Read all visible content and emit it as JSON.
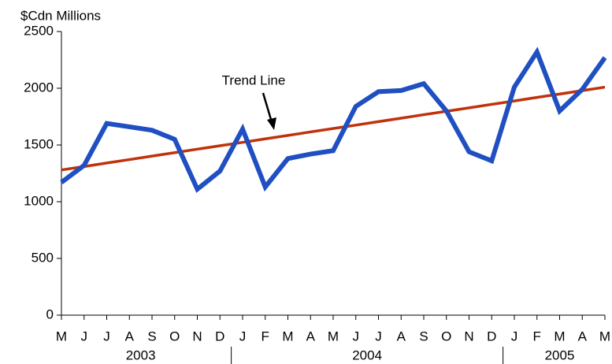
{
  "chart_data": {
    "type": "line",
    "y_label": "$Cdn Millions",
    "annotation": "Trend Line",
    "categories": [
      "M",
      "J",
      "J",
      "A",
      "S",
      "O",
      "N",
      "D",
      "J",
      "F",
      "M",
      "A",
      "M",
      "J",
      "J",
      "A",
      "S",
      "O",
      "N",
      "D",
      "J",
      "F",
      "M",
      "A",
      "M"
    ],
    "year_groups": [
      {
        "label": "2003",
        "months": 8
      },
      {
        "label": "2004",
        "months": 12
      },
      {
        "label": "2005",
        "months": 5
      }
    ],
    "series": [
      {
        "color": "#1f4fc1",
        "values": [
          1170,
          1320,
          1690,
          1660,
          1630,
          1550,
          1110,
          1270,
          1640,
          1130,
          1380,
          1420,
          1450,
          1840,
          1970,
          1980,
          2040,
          1800,
          1440,
          1360,
          2010,
          2320,
          1800,
          1990,
          2270
        ]
      },
      {
        "color": "#c0320c",
        "values": [
          1280,
          1310,
          1341,
          1371,
          1402,
          1432,
          1463,
          1493,
          1523,
          1554,
          1584,
          1615,
          1645,
          1675,
          1706,
          1736,
          1767,
          1797,
          1827,
          1858,
          1888,
          1919,
          1949,
          1979,
          2010
        ]
      }
    ],
    "ylim": [
      0,
      2500
    ],
    "yticks": [
      0,
      500,
      1000,
      1500,
      2000,
      2500
    ]
  }
}
